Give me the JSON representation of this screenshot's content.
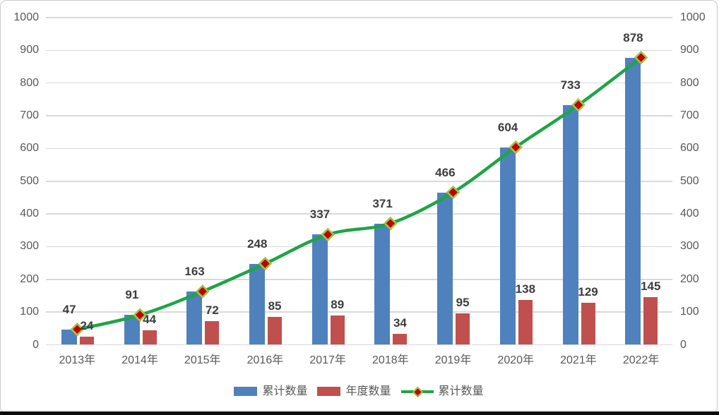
{
  "chart_data": {
    "type": "bar",
    "subtype": "bar+line combo, dual value axes",
    "title": "",
    "xlabel": "",
    "ylabel": "",
    "categories": [
      "2013年",
      "2014年",
      "2015年",
      "2016年",
      "2017年",
      "2018年",
      "2019年",
      "2020年",
      "2021年",
      "2022年"
    ],
    "series": [
      {
        "name": "累计数量",
        "type": "bar",
        "color": "#4f81bd",
        "values": [
          47,
          91,
          163,
          248,
          337,
          371,
          466,
          604,
          733,
          878
        ]
      },
      {
        "name": "年度数量",
        "type": "bar",
        "color": "#c0504d",
        "values": [
          24,
          44,
          72,
          85,
          89,
          34,
          95,
          138,
          129,
          145
        ]
      },
      {
        "name": "累计数量",
        "type": "line",
        "color": "#1ea546",
        "marker": "diamond",
        "marker_fill": "#c00000",
        "marker_border": "#a6c147",
        "values": [
          47,
          91,
          163,
          248,
          337,
          371,
          466,
          604,
          733,
          878
        ]
      }
    ],
    "y_axis_left": {
      "min": 0,
      "max": 1000,
      "step": 100
    },
    "y_axis_right": {
      "min": 0,
      "max": 1000,
      "step": 100
    },
    "grid": "horizontal",
    "legend_position": "bottom",
    "legend": [
      "累计数量",
      "年度数量",
      "累计数量"
    ],
    "colors": {
      "grid": "#d9d9d9",
      "axis_text": "#595959",
      "data_label_text": "#3d3d3d",
      "frame_border": "#c9c9c9",
      "bottom_edge": "#0b0b0b",
      "background": "#ffffff"
    }
  }
}
